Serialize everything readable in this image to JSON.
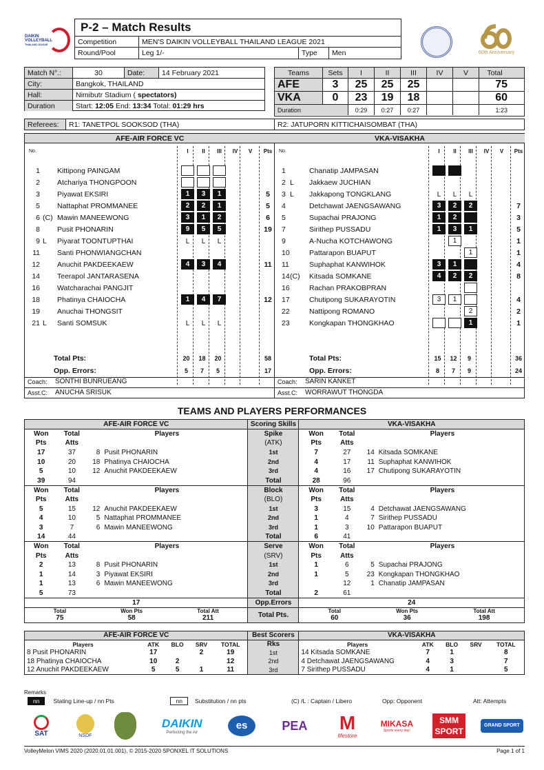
{
  "header": {
    "logo_text": "DAIKIN VOLLEYBALL THAILAND LEAGUE",
    "title": "P-2 – Match Results",
    "competition_label": "Competition",
    "competition": "MEN'S DAIKIN VOLLEYBALL THAILAND LEAGUE 2021",
    "round_label": "Round/Pool",
    "round": "Leg 1/-",
    "type_label": "Type",
    "type": "Men",
    "anniv_text": "60th Anniversary"
  },
  "match": {
    "no_label": "Match N°.:",
    "no": "30",
    "date_label": "Date:",
    "date": "14 February 2021",
    "city_label": "City:",
    "city": "Bangkok, THAILAND",
    "hall_label": "Hall:",
    "hall": "Nimibutr Stadium (",
    "hall_bold": "spectators)",
    "duration_label": "Duration",
    "start_label": "Start:",
    "start": "12:05",
    "end_label": "End:",
    "end": "13:34",
    "total_label": "Total:",
    "total": "01:29 hrs"
  },
  "score": {
    "headers": [
      "Teams",
      "Sets",
      "I",
      "II",
      "III",
      "IV",
      "V",
      "Total"
    ],
    "teams": [
      {
        "code": "AFE",
        "sets": "3",
        "scores": [
          "25",
          "25",
          "25",
          "",
          ""
        ],
        "total": "75"
      },
      {
        "code": "VKA",
        "sets": "0",
        "scores": [
          "23",
          "19",
          "18",
          "",
          ""
        ],
        "total": "60"
      }
    ],
    "duration_label": "Duration",
    "durations": [
      "0:29",
      "0:27",
      "0:27",
      "",
      ""
    ],
    "duration_total": "1:23"
  },
  "referees": {
    "label": "Referees:",
    "r1": "R1: TANETPOL SOOKSOD (THA)",
    "r2": "R2: JATUPORN KITTICHAISOMBAT (THA)"
  },
  "rosters": {
    "col_headers": [
      "No.",
      "I",
      "II",
      "III",
      "IV",
      "V",
      "Pts"
    ],
    "total_label": "Total Pts:",
    "opp_label": "Opp. Errors:",
    "coach_label": "Coach:",
    "asst_label": "Asst.C:",
    "teams": [
      {
        "name": "AFE-AIR FORCE VC",
        "coach": "SONTHI BUNRUEANG",
        "asst": "ANUCHA SRISUK",
        "set_totals": [
          "20",
          "18",
          "20",
          "",
          ""
        ],
        "total": "58",
        "opp_errors": [
          "5",
          "7",
          "5",
          "",
          ""
        ],
        "opp_total": "17",
        "players": [
          {
            "no": "1",
            "mark": "",
            "name": "Kittipong PAINGAM",
            "sets": [
              "sub:",
              "sub:",
              "sub:",
              "",
              ""
            ],
            "pts": ""
          },
          {
            "no": "2",
            "mark": "",
            "name": "Atchariya THONGPOON",
            "sets": [
              "sub:",
              "sub:",
              "sub:",
              "",
              ""
            ],
            "pts": ""
          },
          {
            "no": "3",
            "mark": "",
            "name": "Piyawat EKSIRI",
            "sets": [
              "start:1",
              "start:3",
              "start:1",
              "",
              ""
            ],
            "pts": "5"
          },
          {
            "no": "5",
            "mark": "",
            "name": "Nattaphat PROMMANEE",
            "sets": [
              "start:2",
              "start:2",
              "start:1",
              "",
              ""
            ],
            "pts": "5"
          },
          {
            "no": "6",
            "mark": "(C)",
            "name": "Mawin MANEEWONG",
            "sets": [
              "start:3",
              "start:1",
              "start:2",
              "",
              ""
            ],
            "pts": "6"
          },
          {
            "no": "8",
            "mark": "",
            "name": "Pusit PHONARIN",
            "sets": [
              "start:9",
              "start:5",
              "start:5",
              "",
              ""
            ],
            "pts": "19"
          },
          {
            "no": "9",
            "mark": "L",
            "name": "Piyarat TOONTUPTHAI",
            "sets": [
              "L",
              "L",
              "L",
              "",
              ""
            ],
            "pts": ""
          },
          {
            "no": "11",
            "mark": "",
            "name": "Santi PHONWIANGCHAN",
            "sets": [
              "",
              "",
              "",
              "",
              ""
            ],
            "pts": ""
          },
          {
            "no": "12",
            "mark": "",
            "name": "Anuchit PAKDEEKAEW",
            "sets": [
              "start:4",
              "start:3",
              "start:4",
              "",
              ""
            ],
            "pts": "11"
          },
          {
            "no": "14",
            "mark": "",
            "name": "Teerapol JANTARASENA",
            "sets": [
              "",
              "",
              "",
              "",
              ""
            ],
            "pts": ""
          },
          {
            "no": "16",
            "mark": "",
            "name": "Watcharachai PANGJIT",
            "sets": [
              "",
              "",
              "",
              "",
              ""
            ],
            "pts": ""
          },
          {
            "no": "18",
            "mark": "",
            "name": "Phatinya CHAIOCHA",
            "sets": [
              "start:1",
              "start:4",
              "start:7",
              "",
              ""
            ],
            "pts": "12"
          },
          {
            "no": "19",
            "mark": "",
            "name": "Anuchai THONGSIT",
            "sets": [
              "",
              "",
              "",
              "",
              ""
            ],
            "pts": ""
          },
          {
            "no": "21",
            "mark": "L",
            "name": "Santi SOMSUK",
            "sets": [
              "L",
              "L",
              "L",
              "",
              ""
            ],
            "pts": ""
          }
        ]
      },
      {
        "name": "VKA-VISAKHA",
        "coach": "SARIN KANKET",
        "asst": "WORRAWUT THONGDA",
        "set_totals": [
          "15",
          "12",
          "9",
          "",
          ""
        ],
        "total": "36",
        "opp_errors": [
          "8",
          "7",
          "9",
          "",
          ""
        ],
        "opp_total": "24",
        "players": [
          {
            "no": "1",
            "mark": "",
            "name": "Chanatip JAMPASAN",
            "sets": [
              "start:",
              "start:",
              "",
              "",
              ""
            ],
            "pts": ""
          },
          {
            "no": "2",
            "mark": "L",
            "name": "Jakkaew JUCHIAN",
            "sets": [
              "",
              "",
              "",
              "",
              ""
            ],
            "pts": ""
          },
          {
            "no": "3",
            "mark": "L",
            "name": "Jakkapong TONGKLANG",
            "sets": [
              "L",
              "L",
              "L",
              "",
              ""
            ],
            "pts": ""
          },
          {
            "no": "4",
            "mark": "",
            "name": "Detchawat JAENGSAWANG",
            "sets": [
              "start:3",
              "start:2",
              "start:2",
              "",
              ""
            ],
            "pts": "7"
          },
          {
            "no": "5",
            "mark": "",
            "name": "Supachai PRAJONG",
            "sets": [
              "start:1",
              "start:2",
              "start:",
              "",
              ""
            ],
            "pts": "3"
          },
          {
            "no": "7",
            "mark": "",
            "name": "Sirithep PUSSADU",
            "sets": [
              "start:1",
              "start:3",
              "start:1",
              "",
              ""
            ],
            "pts": "5"
          },
          {
            "no": "9",
            "mark": "",
            "name": "A-Nucha KOTCHAWONG",
            "sets": [
              "",
              "sub:1",
              "",
              "",
              ""
            ],
            "pts": "1"
          },
          {
            "no": "10",
            "mark": "",
            "name": "Pattarapon BUAPUT",
            "sets": [
              "",
              "",
              "sub:1",
              "",
              ""
            ],
            "pts": "1"
          },
          {
            "no": "11",
            "mark": "",
            "name": "Suphaphat KANWIHOK",
            "sets": [
              "start:3",
              "start:1",
              "start:",
              "",
              ""
            ],
            "pts": "4"
          },
          {
            "no": "14",
            "mark": "(C)",
            "name": "Kitsada SOMKANE",
            "sets": [
              "start:4",
              "start:2",
              "start:2",
              "",
              ""
            ],
            "pts": "8"
          },
          {
            "no": "16",
            "mark": "",
            "name": "Rachan PRAKOBPRAN",
            "sets": [
              "",
              "",
              "sub:",
              "",
              ""
            ],
            "pts": ""
          },
          {
            "no": "17",
            "mark": "",
            "name": "Chutipong SUKARAYOTIN",
            "sets": [
              "sub:3",
              "sub:1",
              "sub:",
              "",
              ""
            ],
            "pts": "4"
          },
          {
            "no": "22",
            "mark": "",
            "name": "Nattipong ROMANO",
            "sets": [
              "",
              "",
              "sub:2",
              "",
              ""
            ],
            "pts": "2"
          },
          {
            "no": "23",
            "mark": "",
            "name": "Kongkapan THONGKHAO",
            "sets": [
              "sub:",
              "sub:",
              "start:1",
              "",
              ""
            ],
            "pts": "1"
          }
        ]
      }
    ]
  },
  "performance": {
    "title": "TEAMS AND PLAYERS PERFORMANCES",
    "left_team": "AFE-AIR FORCE VC",
    "right_team": "VKA-VISAKHA",
    "center_header": "Scoring Skills",
    "won_label": "Won",
    "pts_label": "Pts",
    "total_label": "Total",
    "atts_label": "Atts",
    "players_label": "Players",
    "ranks": [
      "1st",
      "2nd",
      "3rd"
    ],
    "rank_total": "Total",
    "skills": [
      {
        "name": "Spike",
        "code": "(ATK)",
        "left": {
          "rows": [
            [
              "17",
              "37",
              "8",
              "Pusit PHONARIN"
            ],
            [
              "10",
              "20",
              "18",
              "Phatinya CHAIOCHA"
            ],
            [
              "5",
              "10",
              "12",
              "Anuchit PAKDEEKAEW"
            ]
          ],
          "total": [
            "39",
            "94"
          ]
        },
        "right": {
          "rows": [
            [
              "7",
              "27",
              "14",
              "Kitsada SOMKANE"
            ],
            [
              "4",
              "17",
              "11",
              "Suphaphat KANWIHOK"
            ],
            [
              "4",
              "16",
              "17",
              "Chutipong SUKARAYOTIN"
            ]
          ],
          "total": [
            "28",
            "96"
          ]
        }
      },
      {
        "name": "Block",
        "code": "(BLO)",
        "left": {
          "rows": [
            [
              "5",
              "15",
              "12",
              "Anuchit PAKDEEKAEW"
            ],
            [
              "4",
              "10",
              "5",
              "Nattaphat PROMMANEE"
            ],
            [
              "3",
              "7",
              "6",
              "Mawin MANEEWONG"
            ]
          ],
          "total": [
            "14",
            "44"
          ]
        },
        "right": {
          "rows": [
            [
              "3",
              "15",
              "4",
              "Detchawat JAENGSAWANG"
            ],
            [
              "1",
              "4",
              "7",
              "Sirithep PUSSADU"
            ],
            [
              "1",
              "3",
              "10",
              "Pattarapon BUAPUT"
            ]
          ],
          "total": [
            "6",
            "41"
          ]
        }
      },
      {
        "name": "Serve",
        "code": "(SRV)",
        "left": {
          "rows": [
            [
              "2",
              "13",
              "8",
              "Pusit PHONARIN"
            ],
            [
              "1",
              "14",
              "3",
              "Piyawat EKSIRI"
            ],
            [
              "1",
              "13",
              "6",
              "Mawin MANEEWONG"
            ]
          ],
          "total": [
            "5",
            "73"
          ]
        },
        "right": {
          "rows": [
            [
              "1",
              "6",
              "5",
              "Supachai PRAJONG"
            ],
            [
              "1",
              "5",
              "23",
              "Kongkapan THONGKHAO"
            ],
            [
              "",
              "12",
              "1",
              "Chanatip JAMPASAN"
            ]
          ],
          "total": [
            "2",
            "61"
          ]
        }
      }
    ],
    "opp_errors_label": "Opp.Errors",
    "left_opp": "17",
    "right_opp": "24",
    "total_pts_label": "Total Pts.",
    "sum_labels": [
      "Total",
      "Won Pts",
      "Total Att"
    ],
    "left_sum": [
      "75",
      "58",
      "211"
    ],
    "right_sum": [
      "60",
      "36",
      "198"
    ]
  },
  "best_scorers": {
    "left_team": "AFE-AIR FORCE VC",
    "right_team": "VKA-VISAKHA",
    "center_header": "Best Scorers",
    "rks_label": "Rks",
    "cols": [
      "Players",
      "ATK",
      "BLO",
      "SRV",
      "TOTAL"
    ],
    "ranks": [
      "1st",
      "2nd",
      "3rd"
    ],
    "left": [
      [
        "8 Pusit PHONARIN",
        "17",
        "",
        "2",
        "19"
      ],
      [
        "18 Phatinya CHAIOCHA",
        "10",
        "2",
        "",
        "12"
      ],
      [
        "12 Anuchit PAKDEEKAEW",
        "5",
        "5",
        "1",
        "11"
      ]
    ],
    "right": [
      [
        "14 Kitsada SOMKANE",
        "7",
        "1",
        "",
        "8"
      ],
      [
        "4 Detchawat JAENGSAWANG",
        "4",
        "3",
        "",
        "7"
      ],
      [
        "7 Sirithep PUSSADU",
        "4",
        "1",
        "",
        "5"
      ]
    ]
  },
  "legend": {
    "remarks": "Remarks",
    "box": "nn",
    "start_text": "Stating Line-up / nn Pts",
    "sub_text": "Substitution / nn pts",
    "captain": "(C) /L : Captain / Libero",
    "opp": "Opp: Opponent",
    "att": "Att: Attempts"
  },
  "sponsors": [
    "SAT",
    "NSDF",
    "",
    "DAIKIN",
    "es",
    "PEA",
    "M",
    "MIKASA",
    "SMM SPORT",
    "GRAND SPORT"
  ],
  "sponsor_taglines": {
    "daikin": "Perfecting the Air",
    "m": "lifestore",
    "mikasa": "Sports every day!"
  },
  "colors": {
    "start_box": "#111111",
    "header_gray": "#d9d9d9",
    "daikin": "#0a9be0",
    "pea": "#6b2c8f",
    "m": "#d0202a",
    "smm": "#d0202a",
    "grand": "#1d5fae"
  },
  "footer": {
    "left": "VolleyMelon VIMS 2020 (2020.01.01.001), © 2015-2020 SPONXEL IT SOLUTIONS",
    "right": "Page 1 of 1"
  }
}
